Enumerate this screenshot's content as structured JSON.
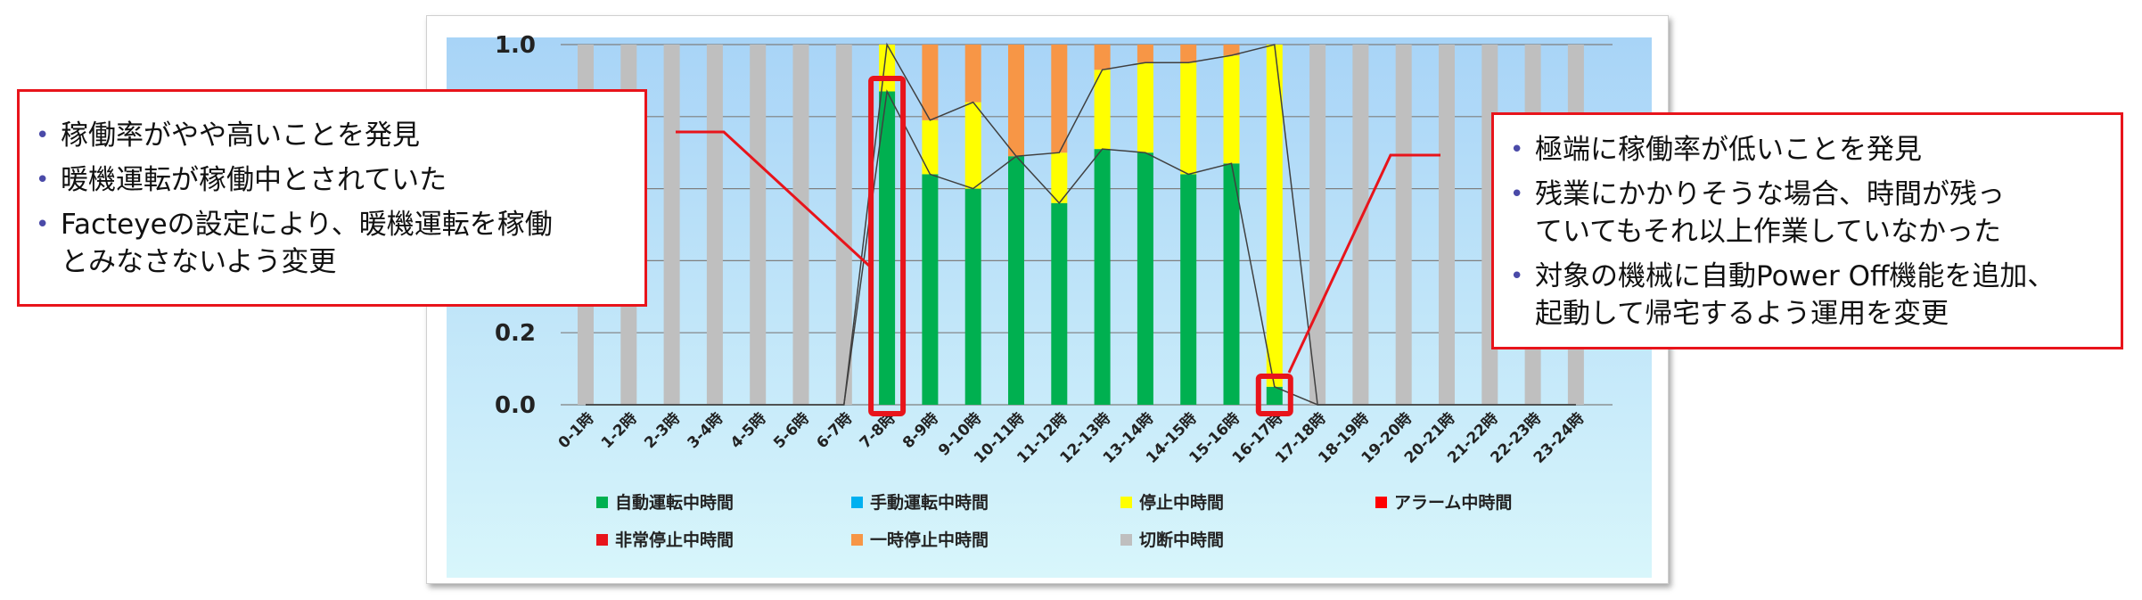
{
  "chart_data": {
    "type": "bar",
    "stacked": true,
    "categories": [
      "0-1時",
      "1-2時",
      "2-3時",
      "3-4時",
      "4-5時",
      "5-6時",
      "6-7時",
      "7-8時",
      "8-9時",
      "9-10時",
      "10-11時",
      "11-12時",
      "12-13時",
      "13-14時",
      "14-15時",
      "15-16時",
      "16-17時",
      "17-18時",
      "18-19時",
      "19-20時",
      "20-21時",
      "21-22時",
      "22-23時",
      "23-24時"
    ],
    "series": [
      {
        "name": "自動運転中時間",
        "color": "#00b050",
        "values": [
          0,
          0,
          0,
          0,
          0,
          0,
          0,
          0.87,
          0.64,
          0.6,
          0.69,
          0.56,
          0.71,
          0.7,
          0.64,
          0.67,
          0.05,
          0,
          0,
          0,
          0,
          0,
          0,
          0
        ]
      },
      {
        "name": "手動運転中時間",
        "color": "#00b0f0",
        "values": [
          0,
          0,
          0,
          0,
          0,
          0,
          0,
          0,
          0,
          0,
          0,
          0,
          0,
          0,
          0,
          0,
          0,
          0,
          0,
          0,
          0,
          0,
          0,
          0
        ]
      },
      {
        "name": "停止中時間",
        "color": "#ffff00",
        "values": [
          0,
          0,
          0,
          0,
          0,
          0,
          0,
          0.13,
          0.15,
          0.24,
          0,
          0.14,
          0.22,
          0.25,
          0.31,
          0.3,
          0.95,
          0,
          0,
          0,
          0,
          0,
          0,
          0
        ]
      },
      {
        "name": "アラーム中時間",
        "color": "#ff0000",
        "values": [
          0,
          0,
          0,
          0,
          0,
          0,
          0,
          0,
          0,
          0,
          0,
          0,
          0,
          0,
          0,
          0,
          0,
          0,
          0,
          0,
          0,
          0,
          0,
          0
        ]
      },
      {
        "name": "非常停止中時間",
        "color": "#e8141b",
        "values": [
          0,
          0,
          0,
          0,
          0,
          0,
          0,
          0,
          0,
          0,
          0,
          0,
          0,
          0,
          0,
          0,
          0,
          0,
          0,
          0,
          0,
          0,
          0,
          0
        ]
      },
      {
        "name": "一時停止中時間",
        "color": "#f79646",
        "values": [
          0,
          0,
          0,
          0,
          0,
          0,
          0,
          0,
          0.21,
          0.16,
          0.31,
          0.3,
          0.07,
          0.05,
          0.05,
          0.03,
          0,
          0,
          0,
          0,
          0,
          0,
          0,
          0
        ]
      },
      {
        "name": "切断中時間",
        "color": "#bfbfbf",
        "values": [
          1,
          1,
          1,
          1,
          1,
          1,
          1,
          0,
          0,
          0,
          0,
          0,
          0,
          0,
          0,
          0,
          0,
          1,
          1,
          1,
          1,
          1,
          1,
          1
        ]
      }
    ],
    "yticks": [
      "0.0",
      "0.2",
      "1.0"
    ],
    "ylim": [
      0,
      1.0
    ],
    "grid": true,
    "legend_position": "bottom",
    "highlighted_categories": [
      "7-8時",
      "16-17時"
    ]
  },
  "colors": {
    "plot_top": "#a8d4f7",
    "plot_bottom": "#d8f6fb",
    "callout_border": "#e8141b",
    "bullet": "#4a4aa8"
  },
  "callouts": {
    "left": {
      "items": [
        "稼働率がやや高いことを発見",
        "暖機運転が稼働中とされていた",
        "Facteyeの設定により、暖機運転を稼働\nとみなさないよう変更"
      ]
    },
    "right": {
      "items": [
        "極端に稼働率が低いことを発見",
        "残業にかかりそうな場合、時間が残っ\nていてもそれ以上作業していなかった",
        "対象の機械に自動Power Off機能を追加、\n起動して帰宅するよう運用を変更"
      ]
    }
  }
}
